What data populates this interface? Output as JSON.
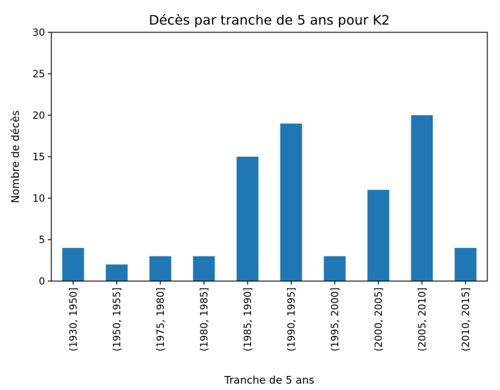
{
  "chart_data": {
    "type": "bar",
    "title": "Décès par tranche de 5 ans pour K2",
    "xlabel": "Tranche de 5 ans",
    "ylabel": "Nombre de décès",
    "categories": [
      "(1930, 1950]",
      "(1950, 1955]",
      "(1975, 1980]",
      "(1980, 1985]",
      "(1985, 1990]",
      "(1990, 1995]",
      "(1995, 2000]",
      "(2000, 2005]",
      "(2005, 2010]",
      "(2010, 2015]"
    ],
    "values": [
      4,
      2,
      3,
      3,
      15,
      19,
      3,
      11,
      20,
      4
    ],
    "ylim": [
      0,
      30
    ],
    "yticks": [
      "0",
      "5",
      "10",
      "15",
      "20",
      "25",
      "30"
    ],
    "bar_color": "#1f77b4",
    "grid": false,
    "legend": "none"
  }
}
